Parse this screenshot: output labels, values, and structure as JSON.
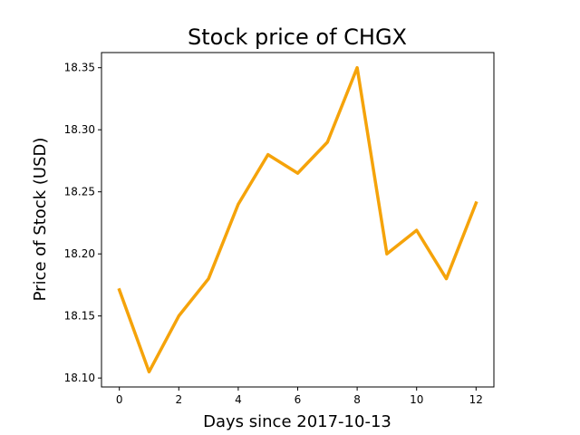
{
  "chart_data": {
    "type": "line",
    "title": "Stock price of CHGX",
    "xlabel": "Days since 2017-10-13",
    "ylabel": "Price of Stock (USD)",
    "x": [
      0,
      1,
      2,
      3,
      4,
      5,
      6,
      7,
      8,
      9,
      10,
      11,
      12
    ],
    "series": [
      {
        "values": [
          18.171,
          18.105,
          18.15,
          18.18,
          18.24,
          18.28,
          18.265,
          18.29,
          18.35,
          18.2,
          18.219,
          18.18,
          18.241
        ],
        "color": "#f5a30a"
      }
    ],
    "xlim": [
      -0.6,
      12.6
    ],
    "ylim": [
      18.0928,
      18.3622
    ],
    "xticks": [
      0,
      2,
      4,
      6,
      8,
      10,
      12
    ],
    "xtick_labels": [
      "0",
      "2",
      "4",
      "6",
      "8",
      "10",
      "12"
    ],
    "yticks": [
      18.1,
      18.15,
      18.2,
      18.25,
      18.3,
      18.35
    ],
    "ytick_labels": [
      "18.10",
      "18.15",
      "18.20",
      "18.25",
      "18.30",
      "18.35"
    ],
    "grid": false,
    "legend": "none"
  }
}
